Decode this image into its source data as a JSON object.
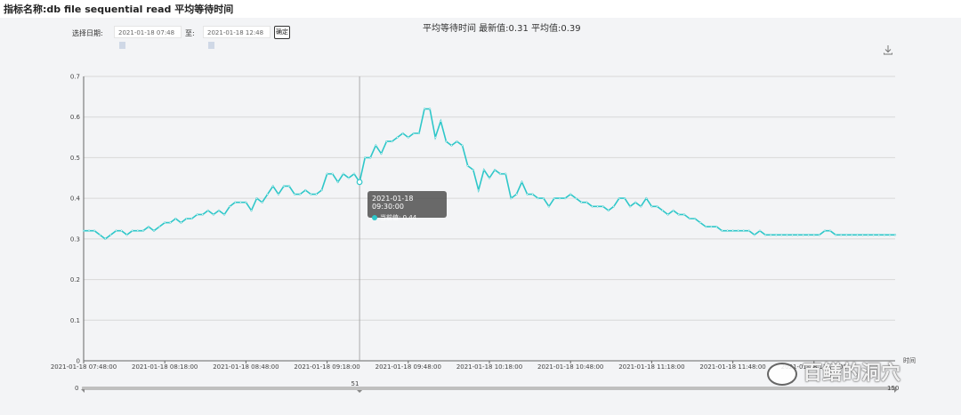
{
  "header": {
    "title": "指标名称:db file sequential read 平均等待时间"
  },
  "controls": {
    "date_label": "选择日期:",
    "start_date": "2021-01-18 07:48",
    "to_label": "至:",
    "end_date": "2021-01-18 12:48",
    "confirm_label": "确定"
  },
  "chart_title": "平均等待时间 最新值:0.31 平均值:0.39",
  "tooltip": {
    "time": "2021-01-18 09:30:00",
    "label": "当前值: 0.44"
  },
  "zoom": {
    "start": "0",
    "mid": "51",
    "end": "150"
  },
  "watermark": "百鳝的洞穴",
  "axis_name_x": "时间",
  "colors": {
    "line": "#2ec7c9",
    "grid": "#d8d8d8",
    "tooltip_bg": "#505050"
  },
  "icons": {
    "download": "download-icon",
    "watermark": "wechat-icon"
  },
  "chart_data": {
    "type": "line",
    "title": "平均等待时间 最新值:0.31 平均值:0.39",
    "xlabel": "时间",
    "ylabel": "",
    "ylim": [
      0,
      0.7
    ],
    "yticks": [
      "0",
      "0.1",
      "0.2",
      "0.3",
      "0.4",
      "0.5",
      "0.6",
      "0.7"
    ],
    "xticks": [
      "2021-01-18 07:48:00",
      "2021-01-18 08:18:00",
      "2021-01-18 08:48:00",
      "2021-01-18 09:18:00",
      "2021-01-18 09:48:00",
      "2021-01-18 10:18:00",
      "2021-01-18 10:48:00",
      "2021-01-18 11:18:00",
      "2021-01-18 11:48:00",
      "2021-01-18 12:18:00"
    ],
    "series": [
      {
        "values": [
          0.32,
          0.32,
          0.32,
          0.31,
          0.3,
          0.31,
          0.32,
          0.32,
          0.31,
          0.32,
          0.32,
          0.32,
          0.33,
          0.32,
          0.33,
          0.34,
          0.34,
          0.35,
          0.34,
          0.35,
          0.35,
          0.36,
          0.36,
          0.37,
          0.36,
          0.37,
          0.36,
          0.38,
          0.39,
          0.39,
          0.39,
          0.37,
          0.4,
          0.39,
          0.41,
          0.43,
          0.41,
          0.43,
          0.43,
          0.41,
          0.41,
          0.42,
          0.41,
          0.41,
          0.42,
          0.46,
          0.46,
          0.44,
          0.46,
          0.45,
          0.46,
          0.44,
          0.5,
          0.5,
          0.53,
          0.51,
          0.54,
          0.54,
          0.55,
          0.56,
          0.55,
          0.56,
          0.56,
          0.62,
          0.62,
          0.55,
          0.59,
          0.54,
          0.53,
          0.54,
          0.53,
          0.48,
          0.47,
          0.42,
          0.47,
          0.45,
          0.47,
          0.46,
          0.46,
          0.4,
          0.41,
          0.44,
          0.41,
          0.41,
          0.4,
          0.4,
          0.38,
          0.4,
          0.4,
          0.4,
          0.41,
          0.4,
          0.39,
          0.39,
          0.38,
          0.38,
          0.38,
          0.37,
          0.38,
          0.4,
          0.4,
          0.38,
          0.39,
          0.38,
          0.4,
          0.38,
          0.38,
          0.37,
          0.36,
          0.37,
          0.36,
          0.36,
          0.35,
          0.35,
          0.34,
          0.33,
          0.33,
          0.33,
          0.32,
          0.32,
          0.32,
          0.32,
          0.32,
          0.32,
          0.31,
          0.32,
          0.31,
          0.31,
          0.31,
          0.31,
          0.31,
          0.31,
          0.31,
          0.31,
          0.31,
          0.31,
          0.31,
          0.32,
          0.32,
          0.31,
          0.31,
          0.31,
          0.31,
          0.31,
          0.31,
          0.31,
          0.31,
          0.31,
          0.31,
          0.31,
          0.31
        ]
      }
    ],
    "grid": true,
    "legend": "none"
  }
}
